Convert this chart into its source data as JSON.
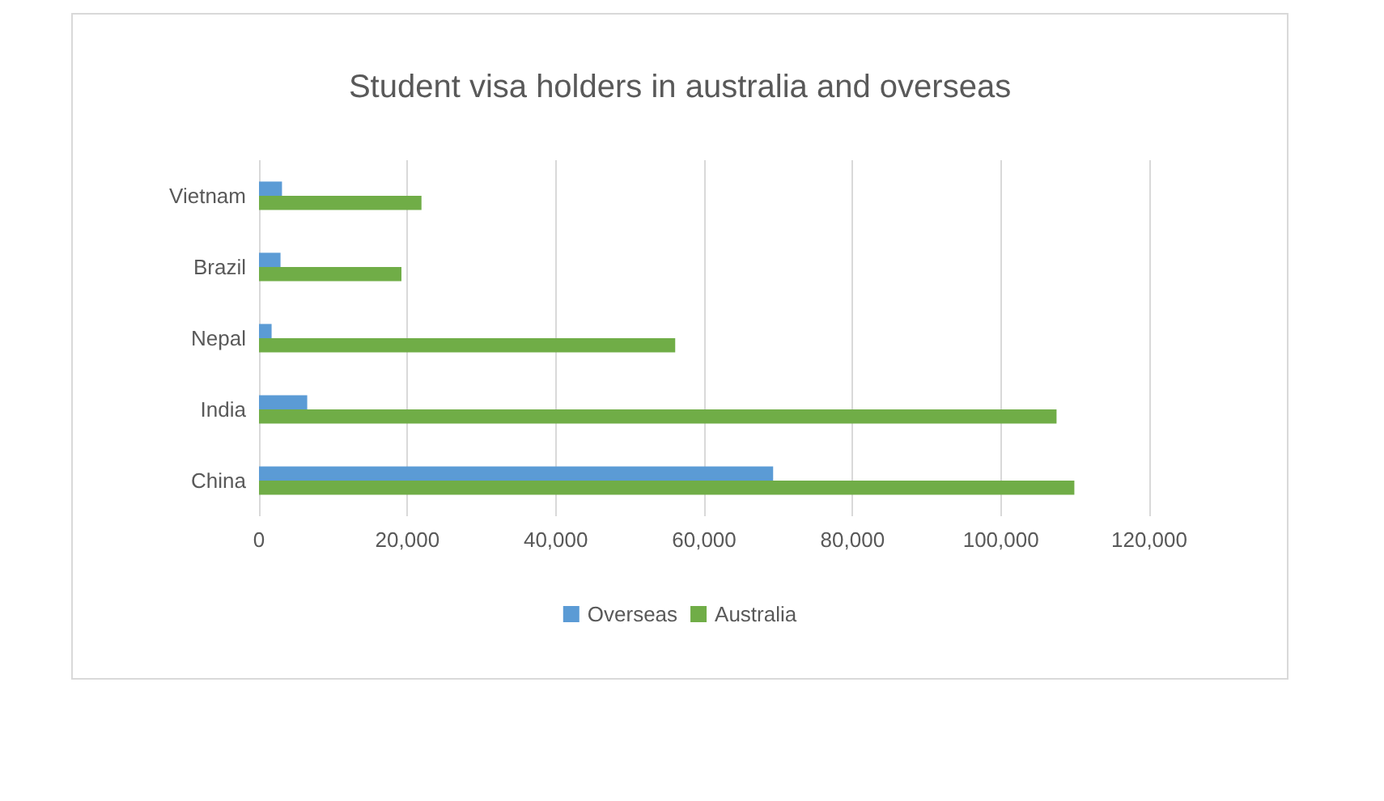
{
  "chart_data": {
    "type": "bar",
    "orientation": "horizontal",
    "title": "Student visa holders in australia and overseas",
    "categories": [
      "Vietnam",
      "Brazil",
      "Nepal",
      "India",
      "China"
    ],
    "series": [
      {
        "name": "Overseas",
        "color": "#5b9bd5",
        "values": [
          3100,
          2900,
          1700,
          6500,
          69300
        ]
      },
      {
        "name": "Australia",
        "color": "#70ad47",
        "values": [
          21900,
          19200,
          56100,
          107500,
          109900
        ]
      }
    ],
    "xlim": [
      0,
      120000
    ],
    "xticks": [
      0,
      {
        "value": 20000,
        "label": "20,000"
      },
      {
        "value": 40000,
        "label": "40,000"
      },
      {
        "value": 60000,
        "label": "60,000"
      },
      {
        "value": 80000,
        "label": "80,000"
      },
      {
        "value": 100000,
        "label": "100,000"
      },
      {
        "value": 120000,
        "label": "120,000"
      }
    ],
    "grid": "x",
    "legend": "bottom"
  }
}
